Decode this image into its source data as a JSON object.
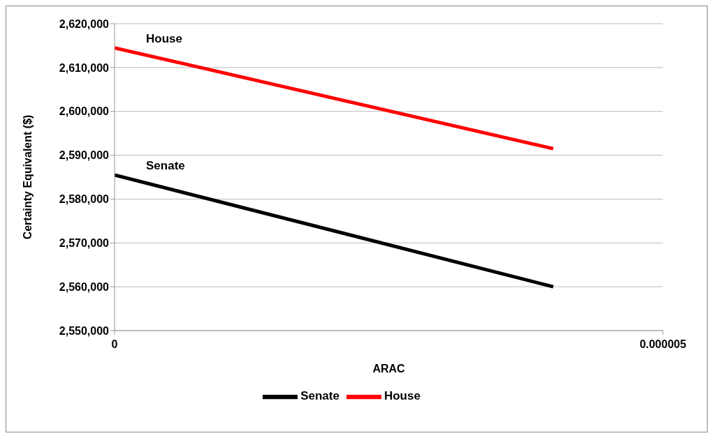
{
  "chart_data": {
    "type": "line",
    "xlabel": "ARAC",
    "ylabel": "Certainty Equivalent ($)",
    "x": [
      0,
      4e-06
    ],
    "series": [
      {
        "name": "Senate",
        "color": "#000000",
        "values": [
          2585500,
          2560000
        ]
      },
      {
        "name": "House",
        "color": "#ff0000",
        "values": [
          2614500,
          2591500
        ]
      }
    ],
    "xlim": [
      0,
      5e-06
    ],
    "xticks": [
      {
        "value": 0,
        "label": "0"
      },
      {
        "value": 5e-06,
        "label": "0.000005"
      }
    ],
    "ylim": [
      2550000,
      2620000
    ],
    "yticks": [
      {
        "value": 2550000,
        "label": "2,550,000"
      },
      {
        "value": 2560000,
        "label": "2,560,000"
      },
      {
        "value": 2570000,
        "label": "2,570,000"
      },
      {
        "value": 2580000,
        "label": "2,580,000"
      },
      {
        "value": 2590000,
        "label": "2,590,000"
      },
      {
        "value": 2600000,
        "label": "2,600,000"
      },
      {
        "value": 2610000,
        "label": "2,610,000"
      },
      {
        "value": 2620000,
        "label": "2,620,000"
      }
    ],
    "grid": "y",
    "legend": "bottom",
    "marker": "none",
    "line_style": "solid"
  }
}
